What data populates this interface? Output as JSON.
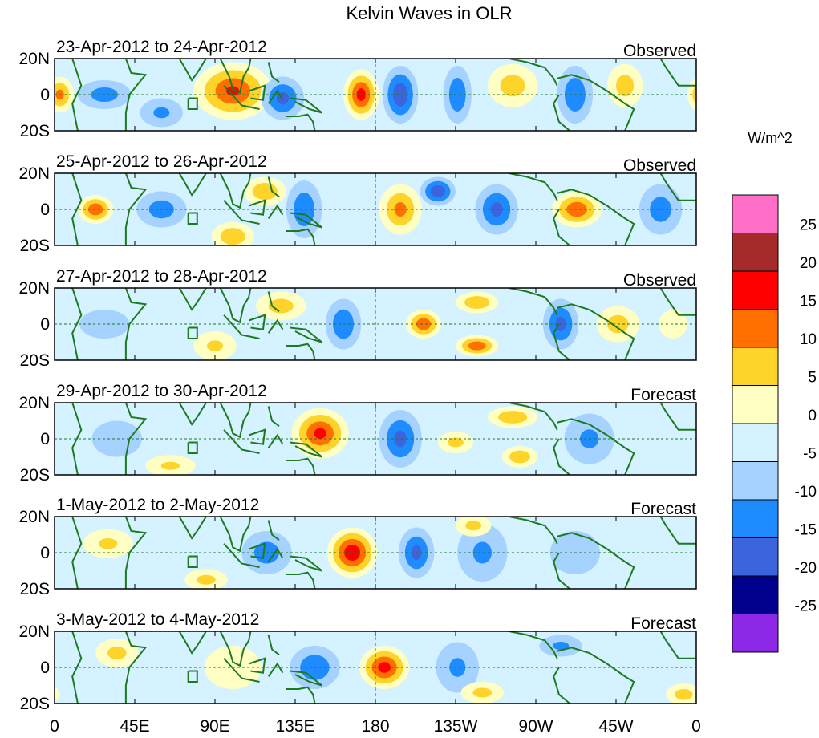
{
  "chart_data": {
    "type": "heatmap",
    "title": "Kelvin Waves in OLR",
    "units": "W/m^2",
    "x_ticks": [
      "0",
      "45E",
      "90E",
      "135E",
      "180",
      "135W",
      "90W",
      "45W",
      "0"
    ],
    "y_ticks": [
      "20N",
      "0",
      "20S"
    ],
    "xlim": [
      0,
      360
    ],
    "ylim": [
      -20,
      20
    ],
    "colorbar": {
      "levels": [
        "25",
        "20",
        "15",
        "10",
        "5",
        "0",
        "-5",
        "-10",
        "-15",
        "-20",
        "-25"
      ],
      "colors": [
        "#ff6ec7",
        "#a52a2a",
        "#ff0000",
        "#ff7000",
        "#ffd42a",
        "#ffffc4",
        "#d4f2ff",
        "#a6d2ff",
        "#1e8cff",
        "#3c64dc",
        "#00008c",
        "#8c28e6"
      ]
    },
    "anomaly_blobs_note": "blobs: [lon, lat, lon_radius, lat_radius, value W/m^2]",
    "panels": [
      {
        "title": "23-Apr-2012 to 24-Apr-2012",
        "type_label": "Observed",
        "blobs": [
          [
            3,
            0,
            8,
            10,
            12
          ],
          [
            28,
            0,
            15,
            8,
            -8
          ],
          [
            100,
            2,
            22,
            16,
            16
          ],
          [
            128,
            -2,
            12,
            12,
            -12
          ],
          [
            172,
            0,
            10,
            14,
            18
          ],
          [
            194,
            0,
            10,
            16,
            -15
          ],
          [
            226,
            0,
            8,
            16,
            -10
          ],
          [
            257,
            5,
            14,
            12,
            8
          ],
          [
            292,
            0,
            10,
            16,
            -10
          ],
          [
            320,
            5,
            10,
            12,
            8
          ],
          [
            60,
            -10,
            12,
            8,
            -6
          ]
        ]
      },
      {
        "title": "25-Apr-2012 to 26-Apr-2012",
        "type_label": "Observed",
        "blobs": [
          [
            23,
            0,
            10,
            8,
            15
          ],
          [
            60,
            0,
            14,
            10,
            -8
          ],
          [
            118,
            10,
            12,
            8,
            10
          ],
          [
            100,
            -15,
            12,
            8,
            10
          ],
          [
            140,
            0,
            10,
            16,
            -10
          ],
          [
            194,
            0,
            12,
            14,
            12
          ],
          [
            215,
            10,
            10,
            8,
            -15
          ],
          [
            248,
            0,
            12,
            14,
            -12
          ],
          [
            293,
            0,
            14,
            10,
            15
          ],
          [
            340,
            0,
            12,
            14,
            -8
          ]
        ]
      },
      {
        "title": "27-Apr-2012 to 28-Apr-2012",
        "type_label": "Observed",
        "blobs": [
          [
            28,
            0,
            14,
            8,
            -5
          ],
          [
            127,
            10,
            14,
            8,
            8
          ],
          [
            162,
            0,
            10,
            14,
            -10
          ],
          [
            207,
            0,
            10,
            8,
            15
          ],
          [
            237,
            12,
            12,
            6,
            10
          ],
          [
            237,
            -12,
            12,
            6,
            15
          ],
          [
            284,
            0,
            10,
            14,
            -12
          ],
          [
            316,
            0,
            12,
            10,
            8
          ],
          [
            347,
            0,
            8,
            8,
            5
          ],
          [
            90,
            -12,
            12,
            8,
            6
          ]
        ]
      },
      {
        "title": "29-Apr-2012 to 30-Apr-2012",
        "type_label": "Forecast",
        "blobs": [
          [
            149,
            3,
            16,
            14,
            17
          ],
          [
            194,
            0,
            12,
            16,
            -12
          ],
          [
            257,
            12,
            14,
            6,
            10
          ],
          [
            261,
            -10,
            10,
            6,
            10
          ],
          [
            225,
            -2,
            10,
            6,
            7
          ],
          [
            35,
            0,
            14,
            10,
            -5
          ],
          [
            65,
            -15,
            14,
            6,
            6
          ],
          [
            300,
            0,
            14,
            14,
            -6
          ]
        ]
      },
      {
        "title": "1-May-2012 to 2-May-2012",
        "type_label": "Forecast",
        "blobs": [
          [
            167,
            0,
            14,
            14,
            20
          ],
          [
            203,
            0,
            10,
            14,
            -12
          ],
          [
            240,
            0,
            14,
            16,
            -6
          ],
          [
            85,
            -15,
            12,
            6,
            7
          ],
          [
            119,
            0,
            14,
            12,
            -8
          ],
          [
            292,
            0,
            14,
            12,
            -5
          ],
          [
            235,
            15,
            10,
            6,
            7
          ],
          [
            30,
            5,
            14,
            8,
            6
          ]
        ]
      },
      {
        "title": "3-May-2012 to 4-May-2012",
        "type_label": "Forecast",
        "blobs": [
          [
            185,
            0,
            14,
            12,
            18
          ],
          [
            146,
            0,
            14,
            12,
            -10
          ],
          [
            226,
            0,
            12,
            14,
            -6
          ],
          [
            240,
            -14,
            12,
            6,
            7
          ],
          [
            284,
            12,
            12,
            6,
            -6
          ],
          [
            353,
            -15,
            10,
            6,
            8
          ],
          [
            35,
            8,
            12,
            8,
            7
          ],
          [
            100,
            0,
            16,
            12,
            5
          ]
        ]
      }
    ]
  }
}
